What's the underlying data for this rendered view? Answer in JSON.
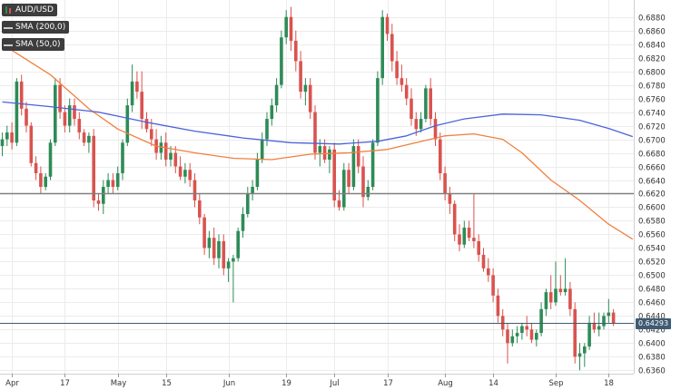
{
  "legend": {
    "pair": "AUD/USD",
    "sma200": "SMA (200,0)",
    "sma50": "SMA (50,0)"
  },
  "price_label": "0.64293",
  "colors": {
    "up": "#2e8b57",
    "down": "#d9534f",
    "sma200": "#4a63d9",
    "sma50": "#f08040",
    "hline": "#808080",
    "current": "#3f5a73"
  },
  "chart_data": {
    "type": "candlestick",
    "title": "",
    "xlabel": "",
    "ylabel": "",
    "ylim": [
      0.6355,
      0.6905
    ],
    "y_ticks": [
      "0.6880",
      "0.6860",
      "0.6840",
      "0.6820",
      "0.6800",
      "0.6780",
      "0.6760",
      "0.6740",
      "0.6720",
      "0.6700",
      "0.6680",
      "0.6660",
      "0.6640",
      "0.6620",
      "0.6600",
      "0.6580",
      "0.6560",
      "0.6540",
      "0.6520",
      "0.6500",
      "0.6480",
      "0.6460",
      "0.6440",
      "0.6420",
      "0.6400",
      "0.6380",
      "0.6360"
    ],
    "x_ticks": [
      {
        "label": "Apr",
        "index": 2
      },
      {
        "label": "17",
        "index": 13
      },
      {
        "label": "May",
        "index": 24
      },
      {
        "label": "15",
        "index": 34
      },
      {
        "label": "Jun",
        "index": 47
      },
      {
        "label": "19",
        "index": 59
      },
      {
        "label": "Jul",
        "index": 69
      },
      {
        "label": "17",
        "index": 80
      },
      {
        "label": "Aug",
        "index": 92
      },
      {
        "label": "14",
        "index": 102
      },
      {
        "label": "Sep",
        "index": 115
      },
      {
        "label": "18",
        "index": 126
      }
    ],
    "horizontal_lines": [
      {
        "value": 0.662,
        "style": "support"
      },
      {
        "value": 0.64293,
        "style": "current"
      }
    ],
    "ohlc": [
      [
        0.669,
        0.671,
        0.6675,
        0.67
      ],
      [
        0.67,
        0.672,
        0.669,
        0.671
      ],
      [
        0.671,
        0.6725,
        0.6685,
        0.6695
      ],
      [
        0.6695,
        0.679,
        0.669,
        0.6785
      ],
      [
        0.6785,
        0.6795,
        0.6735,
        0.6745
      ],
      [
        0.6745,
        0.6755,
        0.671,
        0.672
      ],
      [
        0.672,
        0.6725,
        0.666,
        0.6665
      ],
      [
        0.6665,
        0.6675,
        0.664,
        0.665
      ],
      [
        0.665,
        0.666,
        0.662,
        0.663
      ],
      [
        0.663,
        0.665,
        0.6625,
        0.6645
      ],
      [
        0.6645,
        0.67,
        0.664,
        0.6695
      ],
      [
        0.6695,
        0.679,
        0.669,
        0.678
      ],
      [
        0.678,
        0.679,
        0.673,
        0.674
      ],
      [
        0.674,
        0.675,
        0.671,
        0.672
      ],
      [
        0.672,
        0.676,
        0.671,
        0.675
      ],
      [
        0.675,
        0.676,
        0.672,
        0.673
      ],
      [
        0.673,
        0.674,
        0.67,
        0.671
      ],
      [
        0.671,
        0.6715,
        0.669,
        0.6695
      ],
      [
        0.6695,
        0.671,
        0.668,
        0.6705
      ],
      [
        0.6705,
        0.6715,
        0.66,
        0.661
      ],
      [
        0.661,
        0.662,
        0.6595,
        0.6605
      ],
      [
        0.6605,
        0.664,
        0.659,
        0.663
      ],
      [
        0.663,
        0.665,
        0.662,
        0.664
      ],
      [
        0.664,
        0.665,
        0.662,
        0.663
      ],
      [
        0.663,
        0.666,
        0.6625,
        0.665
      ],
      [
        0.665,
        0.67,
        0.664,
        0.6695
      ],
      [
        0.6695,
        0.676,
        0.669,
        0.675
      ],
      [
        0.675,
        0.681,
        0.674,
        0.6785
      ],
      [
        0.6785,
        0.68,
        0.676,
        0.677
      ],
      [
        0.677,
        0.68,
        0.6715,
        0.673
      ],
      [
        0.673,
        0.674,
        0.671,
        0.6715
      ],
      [
        0.6715,
        0.673,
        0.669,
        0.67
      ],
      [
        0.67,
        0.6715,
        0.667,
        0.668
      ],
      [
        0.668,
        0.6705,
        0.667,
        0.6695
      ],
      [
        0.6695,
        0.671,
        0.666,
        0.667
      ],
      [
        0.667,
        0.669,
        0.666,
        0.668
      ],
      [
        0.668,
        0.669,
        0.665,
        0.666
      ],
      [
        0.666,
        0.6675,
        0.664,
        0.6645
      ],
      [
        0.6645,
        0.6665,
        0.6635,
        0.6655
      ],
      [
        0.6655,
        0.6665,
        0.663,
        0.664
      ],
      [
        0.664,
        0.665,
        0.66,
        0.661
      ],
      [
        0.661,
        0.662,
        0.6575,
        0.6585
      ],
      [
        0.6585,
        0.659,
        0.653,
        0.654
      ],
      [
        0.654,
        0.6565,
        0.6525,
        0.6555
      ],
      [
        0.6555,
        0.657,
        0.6515,
        0.6525
      ],
      [
        0.6525,
        0.656,
        0.651,
        0.655
      ],
      [
        0.655,
        0.656,
        0.65,
        0.651
      ],
      [
        0.651,
        0.6525,
        0.649,
        0.652
      ],
      [
        0.652,
        0.653,
        0.646,
        0.6525
      ],
      [
        0.6525,
        0.657,
        0.652,
        0.6565
      ],
      [
        0.6565,
        0.66,
        0.6555,
        0.659
      ],
      [
        0.659,
        0.663,
        0.6585,
        0.662
      ],
      [
        0.662,
        0.664,
        0.661,
        0.663
      ],
      [
        0.663,
        0.668,
        0.6625,
        0.667
      ],
      [
        0.667,
        0.671,
        0.6665,
        0.67
      ],
      [
        0.67,
        0.674,
        0.669,
        0.673
      ],
      [
        0.673,
        0.676,
        0.672,
        0.675
      ],
      [
        0.675,
        0.679,
        0.674,
        0.678
      ],
      [
        0.678,
        0.686,
        0.6775,
        0.685
      ],
      [
        0.685,
        0.689,
        0.684,
        0.688
      ],
      [
        0.688,
        0.6895,
        0.683,
        0.6845
      ],
      [
        0.6845,
        0.686,
        0.68,
        0.6815
      ],
      [
        0.6815,
        0.683,
        0.676,
        0.677
      ],
      [
        0.677,
        0.679,
        0.675,
        0.678
      ],
      [
        0.678,
        0.679,
        0.673,
        0.674
      ],
      [
        0.674,
        0.675,
        0.667,
        0.668
      ],
      [
        0.668,
        0.67,
        0.666,
        0.669
      ],
      [
        0.669,
        0.67,
        0.6665,
        0.667
      ],
      [
        0.667,
        0.669,
        0.665,
        0.6685
      ],
      [
        0.6685,
        0.6695,
        0.66,
        0.661
      ],
      [
        0.661,
        0.6625,
        0.6595,
        0.66
      ],
      [
        0.66,
        0.6665,
        0.6595,
        0.6655
      ],
      [
        0.6655,
        0.6665,
        0.662,
        0.663
      ],
      [
        0.663,
        0.67,
        0.6625,
        0.669
      ],
      [
        0.669,
        0.67,
        0.665,
        0.666
      ],
      [
        0.666,
        0.6675,
        0.66,
        0.6615
      ],
      [
        0.6615,
        0.664,
        0.661,
        0.663
      ],
      [
        0.663,
        0.67,
        0.6625,
        0.6695
      ],
      [
        0.6695,
        0.68,
        0.669,
        0.679
      ],
      [
        0.679,
        0.689,
        0.678,
        0.688
      ],
      [
        0.688,
        0.6885,
        0.6845,
        0.6855
      ],
      [
        0.6855,
        0.687,
        0.68,
        0.6815
      ],
      [
        0.6815,
        0.683,
        0.678,
        0.679
      ],
      [
        0.679,
        0.681,
        0.677,
        0.678
      ],
      [
        0.678,
        0.679,
        0.675,
        0.676
      ],
      [
        0.676,
        0.6775,
        0.672,
        0.673
      ],
      [
        0.673,
        0.674,
        0.6705,
        0.6715
      ],
      [
        0.6715,
        0.674,
        0.671,
        0.673
      ],
      [
        0.673,
        0.678,
        0.6725,
        0.6775
      ],
      [
        0.6775,
        0.679,
        0.672,
        0.673
      ],
      [
        0.673,
        0.674,
        0.669,
        0.67
      ],
      [
        0.67,
        0.671,
        0.664,
        0.665
      ],
      [
        0.665,
        0.666,
        0.661,
        0.662
      ],
      [
        0.662,
        0.663,
        0.659,
        0.6605
      ],
      [
        0.6605,
        0.661,
        0.655,
        0.656
      ],
      [
        0.656,
        0.6575,
        0.6535,
        0.6545
      ],
      [
        0.6545,
        0.658,
        0.654,
        0.657
      ],
      [
        0.657,
        0.658,
        0.655,
        0.6555
      ],
      [
        0.6555,
        0.662,
        0.654,
        0.655
      ],
      [
        0.655,
        0.656,
        0.652,
        0.653
      ],
      [
        0.653,
        0.654,
        0.6505,
        0.651
      ],
      [
        0.651,
        0.6525,
        0.649,
        0.65
      ],
      [
        0.65,
        0.651,
        0.646,
        0.647
      ],
      [
        0.647,
        0.648,
        0.643,
        0.644
      ],
      [
        0.644,
        0.645,
        0.641,
        0.642
      ],
      [
        0.642,
        0.643,
        0.637,
        0.64
      ],
      [
        0.64,
        0.642,
        0.6395,
        0.641
      ],
      [
        0.641,
        0.6425,
        0.64,
        0.6415
      ],
      [
        0.6415,
        0.643,
        0.6405,
        0.6425
      ],
      [
        0.6425,
        0.644,
        0.641,
        0.642
      ],
      [
        0.642,
        0.643,
        0.64,
        0.6405
      ],
      [
        0.6405,
        0.642,
        0.6395,
        0.6415
      ],
      [
        0.6415,
        0.646,
        0.641,
        0.645
      ],
      [
        0.645,
        0.648,
        0.644,
        0.6475
      ],
      [
        0.6475,
        0.65,
        0.645,
        0.646
      ],
      [
        0.646,
        0.652,
        0.6455,
        0.648
      ],
      [
        0.648,
        0.65,
        0.647,
        0.6475
      ],
      [
        0.6475,
        0.6525,
        0.647,
        0.648
      ],
      [
        0.648,
        0.649,
        0.644,
        0.645
      ],
      [
        0.645,
        0.646,
        0.637,
        0.638
      ],
      [
        0.638,
        0.64,
        0.636,
        0.6385
      ],
      [
        0.6385,
        0.64,
        0.6365,
        0.6395
      ],
      [
        0.6395,
        0.644,
        0.639,
        0.643
      ],
      [
        0.643,
        0.6445,
        0.6415,
        0.642
      ],
      [
        0.642,
        0.6445,
        0.641,
        0.6425
      ],
      [
        0.6425,
        0.6445,
        0.642,
        0.644
      ],
      [
        0.644,
        0.6465,
        0.643,
        0.6445
      ],
      [
        0.6445,
        0.645,
        0.6425,
        0.6429
      ]
    ],
    "series": [
      {
        "indicator": "SMA 50",
        "color": "#f08040",
        "values": [
          [
            0,
            0.684
          ],
          [
            10,
            0.6795
          ],
          [
            18,
            0.6745
          ],
          [
            24,
            0.6715
          ],
          [
            32,
            0.669
          ],
          [
            40,
            0.668
          ],
          [
            48,
            0.6672
          ],
          [
            56,
            0.667
          ],
          [
            64,
            0.6678
          ],
          [
            72,
            0.668
          ],
          [
            80,
            0.6685
          ],
          [
            86,
            0.6695
          ],
          [
            92,
            0.6705
          ],
          [
            98,
            0.6708
          ],
          [
            104,
            0.67
          ],
          [
            108,
            0.668
          ],
          [
            114,
            0.664
          ],
          [
            120,
            0.661
          ],
          [
            126,
            0.6575
          ],
          [
            131,
            0.6553
          ]
        ]
      },
      {
        "indicator": "SMA 200",
        "color": "#4a63d9",
        "values": [
          [
            0,
            0.6755
          ],
          [
            10,
            0.6748
          ],
          [
            20,
            0.674
          ],
          [
            30,
            0.6725
          ],
          [
            40,
            0.6712
          ],
          [
            50,
            0.6702
          ],
          [
            60,
            0.6695
          ],
          [
            70,
            0.6693
          ],
          [
            78,
            0.6697
          ],
          [
            84,
            0.6705
          ],
          [
            90,
            0.672
          ],
          [
            96,
            0.673
          ],
          [
            104,
            0.6737
          ],
          [
            112,
            0.6736
          ],
          [
            120,
            0.6728
          ],
          [
            126,
            0.6716
          ],
          [
            131,
            0.6704
          ]
        ]
      }
    ]
  }
}
